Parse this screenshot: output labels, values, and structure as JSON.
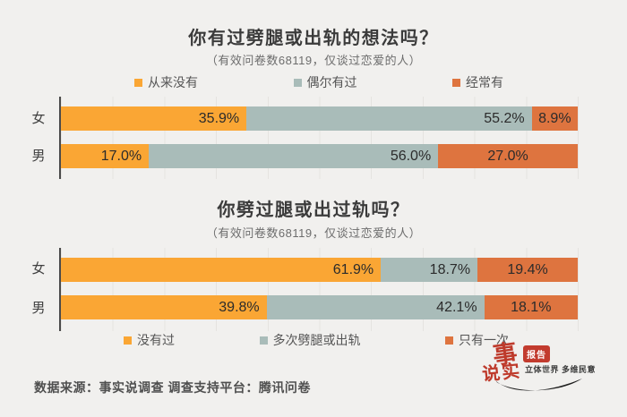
{
  "colors": {
    "background": "#F1F0EE",
    "orange": "#FAA634",
    "gray": "#A9BCB9",
    "red": "#DE743F",
    "axis": "#4a4a4a",
    "grid": "#e5e3e0",
    "title_text": "#3b3b3b",
    "value_text": "#2b2b2b",
    "logo_red": "#BE3A2B"
  },
  "chart_data": [
    {
      "type": "bar",
      "orientation": "horizontal-stacked",
      "title": "你有过劈腿或出轨的想法吗？",
      "subtitle": "（有效问卷数68119，仅谈过恋爱的人）",
      "categories": [
        "女",
        "男"
      ],
      "series": [
        {
          "name": "从来没有",
          "color_key": "orange",
          "values": [
            35.9,
            17.0
          ],
          "labels": [
            "35.9%",
            "17.0%"
          ]
        },
        {
          "name": "偶尔有过",
          "color_key": "gray",
          "values": [
            55.2,
            56.0
          ],
          "labels": [
            "55.2%",
            "56.0%"
          ]
        },
        {
          "name": "经常有",
          "color_key": "red",
          "values": [
            8.9,
            27.0
          ],
          "labels": [
            "8.9%",
            "27.0%"
          ]
        }
      ],
      "xlim": [
        0,
        100
      ],
      "grid": true,
      "legend_position": "top"
    },
    {
      "type": "bar",
      "orientation": "horizontal-stacked",
      "title": "你劈过腿或出过轨吗？",
      "subtitle": "（有效问卷数68119，仅谈过恋爱的人）",
      "categories": [
        "女",
        "男"
      ],
      "series": [
        {
          "name": "没有过",
          "color_key": "orange",
          "values": [
            61.9,
            39.8
          ],
          "labels": [
            "61.9%",
            "39.8%"
          ]
        },
        {
          "name": "多次劈腿或出轨",
          "color_key": "gray",
          "values": [
            18.7,
            42.1
          ],
          "labels": [
            "18.7%",
            "42.1%"
          ]
        },
        {
          "name": "只有一次",
          "color_key": "red",
          "values": [
            19.4,
            18.1
          ],
          "labels": [
            "19.4%",
            "18.1%"
          ]
        }
      ],
      "xlim": [
        0,
        100
      ],
      "grid": true,
      "legend_position": "bottom"
    }
  ],
  "footer": {
    "source": "数据来源：事实说调查  调查支持平台：腾讯问卷"
  },
  "logo": {
    "char_top": "事",
    "char_bottom": "说实",
    "badge": "报告",
    "tagline": "立体世界 多维民意"
  }
}
